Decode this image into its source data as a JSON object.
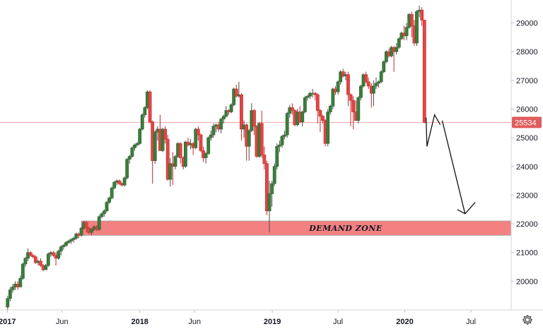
{
  "chart_data": {
    "type": "candlestick",
    "interval": "weekly",
    "x_tick_labels": [
      "2017",
      "Jun",
      "2018",
      "Jun",
      "2019",
      "Jul",
      "2020",
      "Jul"
    ],
    "x_tick_dates": [
      "2017-01-01",
      "2017-06-01",
      "2018-01-01",
      "2018-06-01",
      "2019-01-01",
      "2019-07-01",
      "2020-01-01",
      "2020-07-01"
    ],
    "bold_tick_labels": [
      "2017",
      "2018",
      "2019",
      "2020"
    ],
    "y_ticks": [
      20000,
      21000,
      22000,
      23000,
      24000,
      25000,
      26000,
      27000,
      28000,
      29000
    ],
    "y_range": [
      19000,
      29800
    ],
    "x_range": [
      "2016-12-12",
      "2020-10-20"
    ],
    "last_price": {
      "value": 25534,
      "label": "25534"
    },
    "demand_zone": {
      "label": "DEMAND ZONE",
      "from": 21600,
      "to": 22100,
      "start": "2017-07-24"
    },
    "projection": {
      "points": [
        [
          "2020-03-02",
          24700
        ],
        [
          "2020-03-23",
          25800
        ],
        [
          "2020-04-13",
          25600
        ],
        [
          "2020-06-15",
          22350
        ],
        [
          "2020-07-13",
          22750
        ]
      ]
    },
    "ohlc": [
      [
        "2017-01-02",
        19100,
        19500,
        19000,
        19400
      ],
      [
        "2017-01-09",
        19400,
        19800,
        19300,
        19700
      ],
      [
        "2017-01-16",
        19700,
        19900,
        19600,
        19800
      ],
      [
        "2017-01-23",
        19800,
        20000,
        19700,
        19900
      ],
      [
        "2017-01-30",
        19900,
        20000,
        19700,
        19800
      ],
      [
        "2017-02-06",
        19800,
        20200,
        19800,
        20100
      ],
      [
        "2017-02-13",
        20100,
        20650,
        20050,
        20600
      ],
      [
        "2017-02-20",
        20600,
        20850,
        20500,
        20800
      ],
      [
        "2017-02-27",
        20800,
        21150,
        20700,
        21000
      ],
      [
        "2017-03-06",
        21000,
        21050,
        20850,
        20900
      ],
      [
        "2017-03-13",
        20900,
        20950,
        20800,
        20850
      ],
      [
        "2017-03-20",
        20850,
        20900,
        20600,
        20650
      ],
      [
        "2017-03-27",
        20650,
        20750,
        20550,
        20700
      ],
      [
        "2017-04-03",
        20700,
        20800,
        20500,
        20550
      ],
      [
        "2017-04-10",
        20550,
        20600,
        20350,
        20400
      ],
      [
        "2017-04-17",
        20400,
        20600,
        20400,
        20550
      ],
      [
        "2017-04-24",
        20550,
        21000,
        20500,
        20950
      ],
      [
        "2017-05-01",
        20950,
        21050,
        20850,
        21000
      ],
      [
        "2017-05-08",
        21000,
        21050,
        20850,
        20900
      ],
      [
        "2017-05-15",
        20900,
        21000,
        20550,
        20800
      ],
      [
        "2017-05-22",
        20800,
        21100,
        20750,
        21050
      ],
      [
        "2017-05-29",
        21050,
        21250,
        20900,
        21200
      ],
      [
        "2017-06-05",
        21200,
        21300,
        21100,
        21250
      ],
      [
        "2017-06-12",
        21250,
        21400,
        21200,
        21350
      ],
      [
        "2017-06-19",
        21350,
        21450,
        21300,
        21400
      ],
      [
        "2017-06-26",
        21400,
        21500,
        21300,
        21450
      ],
      [
        "2017-07-03",
        21450,
        21550,
        21350,
        21500
      ],
      [
        "2017-07-10",
        21500,
        21700,
        21450,
        21650
      ],
      [
        "2017-07-17",
        21650,
        21700,
        21500,
        21600
      ],
      [
        "2017-07-24",
        21600,
        21900,
        21550,
        21850
      ],
      [
        "2017-07-31",
        21850,
        22100,
        21800,
        22050
      ],
      [
        "2017-08-07",
        22050,
        22100,
        21700,
        21850
      ],
      [
        "2017-08-14",
        21850,
        21900,
        21650,
        21700
      ],
      [
        "2017-08-21",
        21700,
        21850,
        21600,
        21800
      ],
      [
        "2017-08-28",
        21800,
        21950,
        21750,
        21900
      ],
      [
        "2017-09-04",
        21900,
        21950,
        21750,
        21800
      ],
      [
        "2017-09-11",
        21800,
        22300,
        21750,
        22250
      ],
      [
        "2017-09-18",
        22250,
        22400,
        22200,
        22350
      ],
      [
        "2017-09-25",
        22350,
        22500,
        22250,
        22450
      ],
      [
        "2017-10-02",
        22450,
        22800,
        22400,
        22750
      ],
      [
        "2017-10-09",
        22750,
        22950,
        22700,
        22900
      ],
      [
        "2017-10-16",
        22900,
        23300,
        22850,
        23250
      ],
      [
        "2017-10-23",
        23250,
        23500,
        23200,
        23450
      ],
      [
        "2017-10-30",
        23450,
        23550,
        23350,
        23500
      ],
      [
        "2017-11-06",
        23500,
        23550,
        23350,
        23400
      ],
      [
        "2017-11-13",
        23400,
        23450,
        23300,
        23350
      ],
      [
        "2017-11-20",
        23350,
        23650,
        23300,
        23600
      ],
      [
        "2017-11-27",
        23600,
        24300,
        23550,
        24250
      ],
      [
        "2017-12-04",
        24250,
        24400,
        24100,
        24350
      ],
      [
        "2017-12-11",
        24350,
        24700,
        24300,
        24650
      ],
      [
        "2017-12-18",
        24650,
        24800,
        24550,
        24750
      ],
      [
        "2017-12-25",
        24750,
        24850,
        24700,
        24800
      ],
      [
        "2018-01-01",
        24800,
        25350,
        24750,
        25300
      ],
      [
        "2018-01-08",
        25300,
        25850,
        25250,
        25800
      ],
      [
        "2018-01-15",
        25800,
        26100,
        25700,
        26050
      ],
      [
        "2018-01-22",
        26050,
        26650,
        26000,
        26600
      ],
      [
        "2018-01-29",
        26600,
        26650,
        25500,
        25550
      ],
      [
        "2018-02-05",
        25550,
        25600,
        23400,
        24200
      ],
      [
        "2018-02-12",
        24200,
        25250,
        24100,
        25200
      ],
      [
        "2018-02-19",
        25200,
        25400,
        24900,
        25300
      ],
      [
        "2018-02-26",
        25300,
        25800,
        24600,
        24550
      ],
      [
        "2018-03-05",
        24550,
        25350,
        24500,
        25300
      ],
      [
        "2018-03-12",
        25300,
        25400,
        24800,
        24950
      ],
      [
        "2018-03-19",
        24950,
        25100,
        23500,
        23550
      ],
      [
        "2018-03-26",
        23550,
        24300,
        23300,
        24100
      ],
      [
        "2018-04-02",
        24100,
        24500,
        23350,
        24000
      ],
      [
        "2018-04-09",
        24000,
        24400,
        23900,
        24350
      ],
      [
        "2018-04-16",
        24350,
        24850,
        24300,
        24800
      ],
      [
        "2018-04-23",
        24800,
        24850,
        24100,
        24300
      ],
      [
        "2018-05-01",
        24300,
        24350,
        23900,
        24000
      ],
      [
        "2018-05-07",
        24000,
        24900,
        23950,
        24850
      ],
      [
        "2018-05-14",
        24850,
        25000,
        24700,
        24750
      ],
      [
        "2018-05-21",
        24750,
        24950,
        24600,
        24800
      ],
      [
        "2018-05-28",
        24800,
        24850,
        24400,
        24650
      ],
      [
        "2018-06-04",
        24650,
        25350,
        24600,
        25300
      ],
      [
        "2018-06-11",
        25300,
        25400,
        24900,
        25100
      ],
      [
        "2018-06-18",
        25100,
        25150,
        24500,
        24550
      ],
      [
        "2018-06-25",
        24550,
        24700,
        24150,
        24300
      ],
      [
        "2018-07-02",
        24300,
        24500,
        24100,
        24450
      ],
      [
        "2018-07-09",
        24450,
        25050,
        24400,
        25000
      ],
      [
        "2018-07-16",
        25000,
        25250,
        24900,
        25100
      ],
      [
        "2018-07-23",
        25100,
        25500,
        25000,
        25400
      ],
      [
        "2018-07-30",
        25400,
        25500,
        25200,
        25450
      ],
      [
        "2018-08-06",
        25450,
        25550,
        25200,
        25300
      ],
      [
        "2018-08-13",
        25300,
        25700,
        25150,
        25650
      ],
      [
        "2018-08-20",
        25650,
        25800,
        25500,
        25750
      ],
      [
        "2018-08-27",
        25750,
        26100,
        25700,
        25950
      ],
      [
        "2018-09-03",
        25950,
        26000,
        25800,
        25900
      ],
      [
        "2018-09-10",
        25900,
        26200,
        25850,
        26150
      ],
      [
        "2018-09-17",
        26150,
        26750,
        26100,
        26700
      ],
      [
        "2018-09-24",
        26700,
        26850,
        26400,
        26450
      ],
      [
        "2018-10-01",
        26450,
        26950,
        26400,
        26500
      ],
      [
        "2018-10-08",
        26500,
        26550,
        24900,
        25300
      ],
      [
        "2018-10-15",
        25300,
        25600,
        25000,
        25450
      ],
      [
        "2018-10-22",
        25450,
        25500,
        24200,
        24700
      ],
      [
        "2018-10-29",
        24700,
        25300,
        24200,
        25250
      ],
      [
        "2018-11-05",
        25250,
        26200,
        25200,
        25950
      ],
      [
        "2018-11-12",
        25950,
        26000,
        25100,
        25400
      ],
      [
        "2018-11-19",
        25400,
        25450,
        24300,
        24350
      ],
      [
        "2018-11-26",
        24350,
        25550,
        24300,
        25500
      ],
      [
        "2018-12-03",
        25500,
        25950,
        24300,
        24400
      ],
      [
        "2018-12-10",
        24400,
        24700,
        23900,
        24100
      ],
      [
        "2018-12-17",
        24100,
        24200,
        22300,
        22450
      ],
      [
        "2018-12-24",
        22450,
        23500,
        21700,
        23050
      ],
      [
        "2018-12-31",
        23050,
        23500,
        22600,
        23400
      ],
      [
        "2019-01-07",
        23400,
        24100,
        23300,
        24000
      ],
      [
        "2019-01-14",
        24000,
        24800,
        23900,
        24700
      ],
      [
        "2019-01-21",
        24700,
        24900,
        24500,
        24750
      ],
      [
        "2019-01-28",
        24750,
        25100,
        24650,
        25050
      ],
      [
        "2019-02-04",
        25050,
        25250,
        24950,
        25100
      ],
      [
        "2019-02-11",
        25100,
        25900,
        25000,
        25850
      ],
      [
        "2019-02-18",
        25850,
        26150,
        25700,
        26050
      ],
      [
        "2019-02-25",
        26050,
        26200,
        25800,
        25950
      ],
      [
        "2019-03-04",
        25950,
        26000,
        25400,
        25450
      ],
      [
        "2019-03-11",
        25450,
        26000,
        25400,
        25900
      ],
      [
        "2019-03-18",
        25900,
        26100,
        25500,
        25550
      ],
      [
        "2019-03-25",
        25550,
        25950,
        25400,
        25900
      ],
      [
        "2019-04-01",
        25900,
        26450,
        25850,
        26400
      ],
      [
        "2019-04-08",
        26400,
        26500,
        26300,
        26450
      ],
      [
        "2019-04-15",
        26450,
        26600,
        26350,
        26550
      ],
      [
        "2019-04-22",
        26550,
        26700,
        26400,
        26550
      ],
      [
        "2019-04-29",
        26550,
        26600,
        26300,
        26500
      ],
      [
        "2019-05-06",
        26500,
        26550,
        25500,
        25950
      ],
      [
        "2019-05-13",
        25950,
        26000,
        25200,
        25750
      ],
      [
        "2019-05-20",
        25750,
        25800,
        25500,
        25600
      ],
      [
        "2019-05-27",
        25600,
        25650,
        24700,
        24800
      ],
      [
        "2019-06-03",
        24800,
        26000,
        24700,
        25900
      ],
      [
        "2019-06-10",
        25900,
        26150,
        25800,
        26100
      ],
      [
        "2019-06-17",
        26100,
        26750,
        26000,
        26700
      ],
      [
        "2019-06-24",
        26700,
        26800,
        26500,
        26600
      ],
      [
        "2019-07-01",
        26600,
        27000,
        26500,
        26950
      ],
      [
        "2019-07-08",
        26950,
        27350,
        26850,
        27300
      ],
      [
        "2019-07-15",
        27300,
        27400,
        27100,
        27150
      ],
      [
        "2019-07-22",
        27150,
        27300,
        27000,
        27200
      ],
      [
        "2019-07-29",
        27200,
        27300,
        26100,
        26500
      ],
      [
        "2019-08-05",
        26500,
        26550,
        25400,
        26300
      ],
      [
        "2019-08-12",
        26300,
        26450,
        25300,
        25900
      ],
      [
        "2019-08-19",
        25900,
        26300,
        25700,
        25600
      ],
      [
        "2019-08-26",
        25600,
        26450,
        25500,
        26400
      ],
      [
        "2019-09-02",
        26400,
        26850,
        26300,
        26800
      ],
      [
        "2019-09-09",
        26800,
        27250,
        26750,
        27200
      ],
      [
        "2019-09-16",
        27200,
        27300,
        26900,
        26950
      ],
      [
        "2019-09-23",
        26950,
        27100,
        26700,
        26800
      ],
      [
        "2019-10-01",
        26800,
        26900,
        26050,
        26550
      ],
      [
        "2019-10-07",
        26550,
        27000,
        26100,
        26800
      ],
      [
        "2019-10-14",
        26800,
        27100,
        26700,
        26900
      ],
      [
        "2019-10-21",
        26900,
        27000,
        26750,
        26950
      ],
      [
        "2019-10-28",
        26950,
        27350,
        26900,
        27300
      ],
      [
        "2019-11-04",
        27300,
        27700,
        27250,
        27650
      ],
      [
        "2019-11-11",
        27650,
        28050,
        27600,
        28000
      ],
      [
        "2019-11-18",
        28000,
        28100,
        27800,
        27850
      ],
      [
        "2019-11-25",
        27850,
        28200,
        27800,
        28150
      ],
      [
        "2019-12-02",
        28150,
        28200,
        27300,
        28000
      ],
      [
        "2019-12-09",
        28000,
        28300,
        27900,
        28150
      ],
      [
        "2019-12-16",
        28150,
        28500,
        28100,
        28450
      ],
      [
        "2019-12-23",
        28450,
        28700,
        28400,
        28650
      ],
      [
        "2019-12-30",
        28650,
        28900,
        28400,
        28550
      ],
      [
        "2020-01-06",
        28550,
        29000,
        28400,
        28850
      ],
      [
        "2020-01-13",
        28850,
        29350,
        28800,
        29300
      ],
      [
        "2020-01-20",
        29300,
        29400,
        28500,
        28900
      ],
      [
        "2020-01-27",
        28900,
        29100,
        28200,
        28300
      ],
      [
        "2020-02-03",
        28300,
        29450,
        28200,
        29400
      ],
      [
        "2020-02-10",
        29400,
        29600,
        29200,
        29450
      ],
      [
        "2020-02-17",
        29450,
        29550,
        28900,
        29100
      ],
      [
        "2020-02-24",
        29100,
        29100,
        25500,
        25534
      ]
    ]
  },
  "colors": {
    "up": "#26a69a",
    "up_body": "#3a7d3a",
    "down": "#c62828",
    "down_body": "#e04646",
    "wick": "#4a4a4a",
    "zone_fill": "#f26b6b",
    "zone_stroke": "#9e9e9e",
    "price_line": "#f4a6a6",
    "badge_bg": "#e05c5c",
    "arrow": "#111111",
    "axis_border": "#d6d6d6"
  },
  "icons": {
    "settings": "gear-icon"
  }
}
